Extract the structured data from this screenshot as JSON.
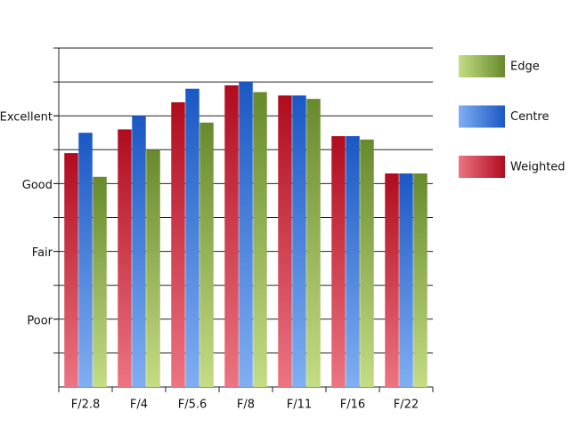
{
  "chart_data": {
    "type": "bar",
    "categories": [
      "F/2.8",
      "F/4",
      "F/5.6",
      "F/8",
      "F/11",
      "F/16",
      "F/22"
    ],
    "series": [
      {
        "name": "Weighted",
        "color": "#b00c1e",
        "color_light": "#ec7482",
        "values": [
          6.9,
          7.6,
          8.4,
          8.9,
          8.6,
          7.4,
          6.3
        ]
      },
      {
        "name": "Centre",
        "color": "#1a58c4",
        "color_light": "#80aef2",
        "values": [
          7.5,
          8.0,
          8.8,
          9.0,
          8.6,
          7.4,
          6.3
        ]
      },
      {
        "name": "Edge",
        "color": "#678a2c",
        "color_light": "#c4dc84",
        "values": [
          6.2,
          7.0,
          7.8,
          8.7,
          8.5,
          7.3,
          6.3
        ]
      }
    ],
    "ylim": [
      0,
      10
    ],
    "yticks": [
      {
        "value": 2,
        "label": "Poor"
      },
      {
        "value": 4,
        "label": "Fair"
      },
      {
        "value": 6,
        "label": "Good"
      },
      {
        "value": 8,
        "label": "Excellent"
      }
    ],
    "grid_lines": [
      1,
      2,
      3,
      4,
      5,
      6,
      7,
      8,
      9,
      10
    ],
    "legend": "right"
  }
}
